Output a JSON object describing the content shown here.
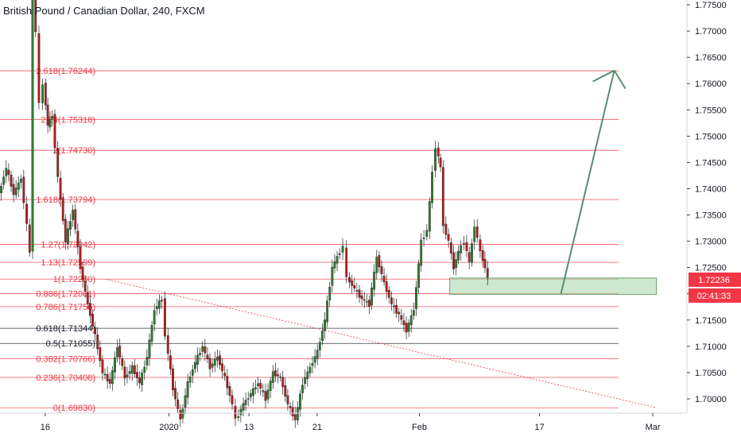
{
  "chart_data": {
    "type": "candlestick",
    "title": "British Pound / Canadian Dollar, 240, FXCM",
    "ylim": [
      1.695,
      1.777
    ],
    "price_ticks": [
      "1.77500",
      "1.77000",
      "1.76500",
      "1.76000",
      "1.75500",
      "1.75000",
      "1.74500",
      "1.74000",
      "1.73500",
      "1.73000",
      "1.72500",
      "1.72000",
      "1.71500",
      "1.71000",
      "1.70500",
      "1.70000"
    ],
    "date_ticks": [
      {
        "label": "16",
        "pos": 0.061
      },
      {
        "label": "2020",
        "pos": 0.228
      },
      {
        "label": "13",
        "pos": 0.336
      },
      {
        "label": "21",
        "pos": 0.428
      },
      {
        "label": "Feb",
        "pos": 0.566
      },
      {
        "label": "17",
        "pos": 0.728
      },
      {
        "label": "Mar",
        "pos": 0.881
      }
    ],
    "fib_levels": [
      {
        "label": "2.618(1.76244)",
        "price": 1.76244,
        "color": "#f23645"
      },
      {
        "label": "2.24(1.75318)",
        "price": 1.75318,
        "color": "#f23645"
      },
      {
        "label": "2(1.74730)",
        "price": 1.7473,
        "color": "#f23645"
      },
      {
        "label": "1.618(1.73794)",
        "price": 1.73794,
        "color": "#f23645"
      },
      {
        "label": "1.27(1.72942)",
        "price": 1.72942,
        "color": "#f23645"
      },
      {
        "label": "1.13(1.72599)",
        "price": 1.72599,
        "color": "#f23645"
      },
      {
        "label": "1(1.72280)",
        "price": 1.7228,
        "color": "#f23645"
      },
      {
        "label": "0.886(1.72001)",
        "price": 1.72001,
        "color": "#f23645"
      },
      {
        "label": "0.786(1.71756)",
        "price": 1.71756,
        "color": "#f23645"
      },
      {
        "label": "0.618(1.71344)",
        "price": 1.71344,
        "color": "#131722"
      },
      {
        "label": "0.5(1.71055)",
        "price": 1.71055,
        "color": "#131722"
      },
      {
        "label": "0.382(1.70766)",
        "price": 1.70766,
        "color": "#f23645"
      },
      {
        "label": "0.236(1.70408)",
        "price": 1.70408,
        "color": "#f23645"
      },
      {
        "label": "0(1.69830)",
        "price": 1.6983,
        "color": "#f23645"
      }
    ],
    "current_price": "1.72236",
    "countdown": "02:41:33",
    "price_path": [
      [
        0.0,
        1.739
      ],
      [
        0.01,
        1.744
      ],
      [
        0.02,
        1.739
      ],
      [
        0.03,
        1.742
      ],
      [
        0.038,
        1.733
      ],
      [
        0.042,
        1.728
      ],
      [
        0.046,
        1.7765
      ],
      [
        0.05,
        1.77
      ],
      [
        0.055,
        1.756
      ],
      [
        0.06,
        1.76
      ],
      [
        0.066,
        1.752
      ],
      [
        0.072,
        1.754
      ],
      [
        0.08,
        1.742
      ],
      [
        0.09,
        1.73
      ],
      [
        0.1,
        1.736
      ],
      [
        0.11,
        1.725
      ],
      [
        0.12,
        1.718
      ],
      [
        0.13,
        1.712
      ],
      [
        0.14,
        1.705
      ],
      [
        0.15,
        1.703
      ],
      [
        0.16,
        1.71
      ],
      [
        0.17,
        1.704
      ],
      [
        0.18,
        1.706
      ],
      [
        0.19,
        1.703
      ],
      [
        0.2,
        1.708
      ],
      [
        0.21,
        1.717
      ],
      [
        0.22,
        1.719
      ],
      [
        0.225,
        1.712
      ],
      [
        0.235,
        1.702
      ],
      [
        0.245,
        1.696
      ],
      [
        0.255,
        1.703
      ],
      [
        0.265,
        1.707
      ],
      [
        0.275,
        1.71
      ],
      [
        0.285,
        1.706
      ],
      [
        0.295,
        1.708
      ],
      [
        0.305,
        1.704
      ],
      [
        0.315,
        1.699
      ],
      [
        0.32,
        1.696
      ],
      [
        0.33,
        1.699
      ],
      [
        0.34,
        1.701
      ],
      [
        0.35,
        1.703
      ],
      [
        0.36,
        1.7
      ],
      [
        0.37,
        1.705
      ],
      [
        0.38,
        1.704
      ],
      [
        0.39,
        1.699
      ],
      [
        0.4,
        1.696
      ],
      [
        0.41,
        1.703
      ],
      [
        0.42,
        1.706
      ],
      [
        0.43,
        1.709
      ],
      [
        0.44,
        1.715
      ],
      [
        0.45,
        1.725
      ],
      [
        0.46,
        1.728
      ],
      [
        0.465,
        1.729
      ],
      [
        0.47,
        1.723
      ],
      [
        0.48,
        1.721
      ],
      [
        0.49,
        1.719
      ],
      [
        0.5,
        1.718
      ],
      [
        0.51,
        1.727
      ],
      [
        0.52,
        1.722
      ],
      [
        0.53,
        1.718
      ],
      [
        0.54,
        1.716
      ],
      [
        0.55,
        1.713
      ],
      [
        0.56,
        1.717
      ],
      [
        0.57,
        1.73
      ],
      [
        0.578,
        1.732
      ],
      [
        0.585,
        1.743
      ],
      [
        0.59,
        1.748
      ],
      [
        0.596,
        1.744
      ],
      [
        0.6,
        1.733
      ],
      [
        0.607,
        1.73
      ],
      [
        0.614,
        1.725
      ],
      [
        0.62,
        1.728
      ],
      [
        0.628,
        1.73
      ],
      [
        0.635,
        1.726
      ],
      [
        0.642,
        1.733
      ],
      [
        0.65,
        1.728
      ],
      [
        0.656,
        1.725
      ],
      [
        0.66,
        1.723
      ]
    ],
    "projection": {
      "start_pos": 0.757,
      "start_price": 1.72,
      "end_pos": 0.829,
      "end_price": 1.7625
    },
    "zone": {
      "start_pos": 0.607,
      "end_pos": 0.886,
      "top": 1.723,
      "bottom": 1.7199
    },
    "trendline": {
      "start_pos": 0.142,
      "start_price": 1.7228,
      "end_pos": 0.886,
      "end_price": 1.6983
    }
  }
}
